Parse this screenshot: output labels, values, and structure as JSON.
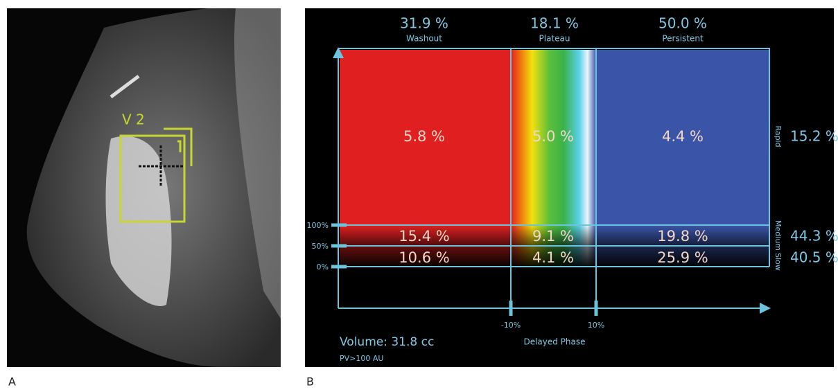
{
  "panels": [
    {
      "label": "A",
      "roi_label": "V 2"
    },
    {
      "label": "B",
      "columns": [
        {
          "percent": "31.9 %",
          "name": "Washout"
        },
        {
          "percent": "18.1 %",
          "name": "Plateau"
        },
        {
          "percent": "50.0 %",
          "name": "Persistent"
        }
      ],
      "rows": [
        {
          "name": "Rapid",
          "percent": "15.2 %"
        },
        {
          "name": "Medium",
          "percent": "44.3 %"
        },
        {
          "name": "Slow",
          "percent": "40.5 %"
        }
      ],
      "cells": [
        [
          "5.8 %",
          "5.0 %",
          "4.4 %"
        ],
        [
          "15.4 %",
          "9.1 %",
          "19.8 %"
        ],
        [
          "10.6 %",
          "4.1 %",
          "25.9 %"
        ]
      ],
      "y_axis_labels": [
        "100%",
        "50%",
        "0%"
      ],
      "x_axis_labels": [
        "-10%",
        "10%"
      ],
      "x_axis_title": "Delayed Phase",
      "volume": "Volume: 31.8 cc",
      "threshold": "PV>100 AU"
    }
  ]
}
